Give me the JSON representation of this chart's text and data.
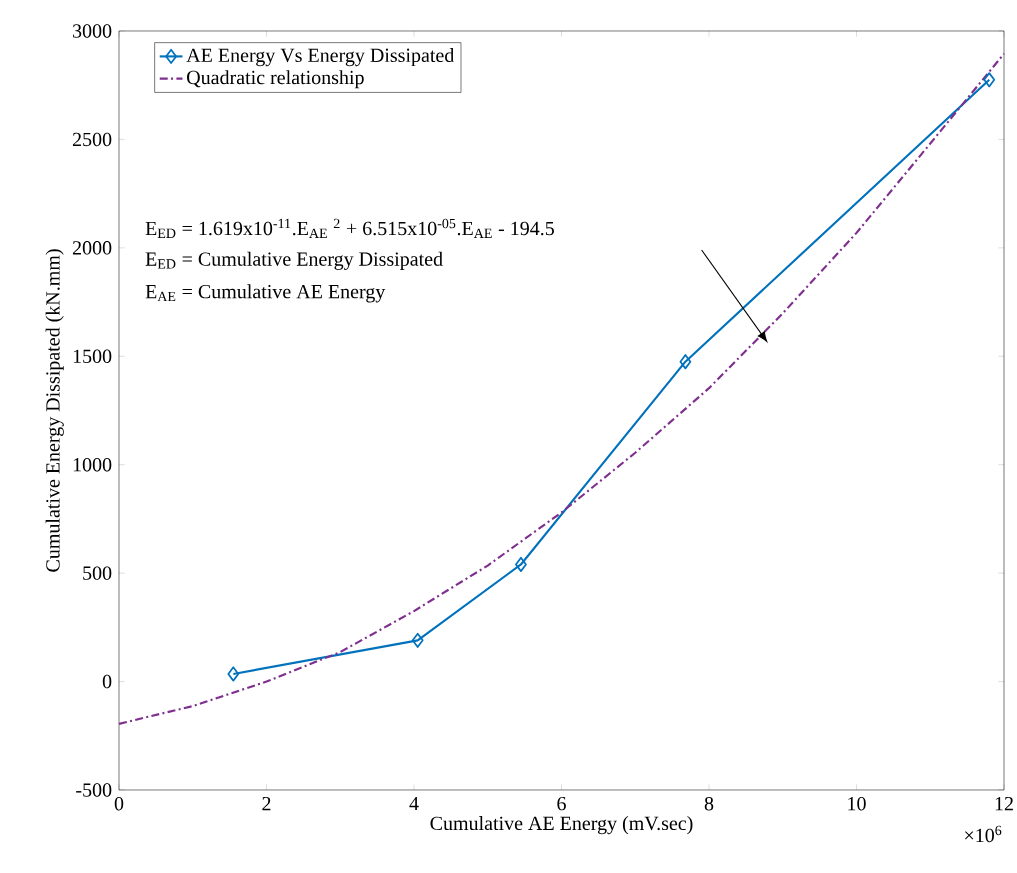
{
  "chart_data": {
    "type": "line",
    "xlabel": "Cumulative AE Energy (mV.sec)",
    "ylabel": "Cumulative Energy Dissipated (kN.mm)",
    "xlim": [
      0,
      12
    ],
    "ylim": [
      -500,
      3000
    ],
    "xticks": [
      0,
      2,
      4,
      6,
      8,
      10,
      12
    ],
    "yticks": [
      -500,
      0,
      500,
      1000,
      1500,
      2000,
      2500,
      3000
    ],
    "series": [
      {
        "name": "AE Energy Vs Energy Dissipated",
        "color": "#0072bd",
        "marker": "diamond",
        "line_style": "solid",
        "x": [
          1.55,
          4.05,
          5.45,
          7.68,
          11.8
        ],
        "values": [
          35,
          190,
          540,
          1475,
          2775
        ]
      },
      {
        "name": "Quadratic relationship",
        "color": "#7e2f8e",
        "marker": "none",
        "line_style": "dashed",
        "x": [
          0,
          1,
          2,
          3,
          4,
          5,
          6,
          7,
          8,
          9,
          10,
          11,
          12
        ],
        "values": [
          -195,
          -113,
          0,
          136,
          325,
          535,
          780,
          1055,
          1353,
          1698,
          2069,
          2481,
          2895
        ]
      }
    ],
    "annotations": [
      "E$_{ED}$ = 1.619x10$^{-11}$.E$_{AE}$ $^{2}$ + 6.515x10$^{-05}$.E$_{AE}$ - 194.5",
      "E$_{ED}$ = Cumulative Energy Dissipated",
      "E$_{AE}$ = Cumulative AE Energy",
      "×10$^{6}$"
    ],
    "legend": "top left",
    "grid": false
  }
}
